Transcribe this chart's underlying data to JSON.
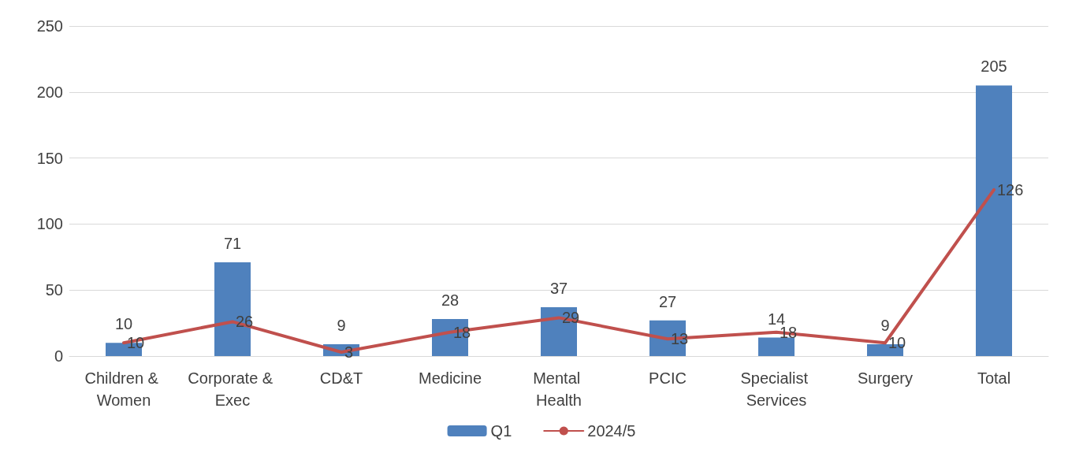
{
  "chart_data": {
    "type": "bar",
    "categories": [
      "Children & Women",
      "Corporate & Exec",
      "CD&T",
      "Medicine",
      "Mental Health",
      "PCIC",
      "Specialist Services",
      "Surgery",
      "Total"
    ],
    "series": [
      {
        "name": "Q1",
        "color": "#4f81bd",
        "values": [
          10,
          71,
          9,
          28,
          37,
          27,
          14,
          9,
          205
        ]
      },
      {
        "name": "2024/5",
        "type": "line",
        "color": "#c0504d",
        "values": [
          10,
          26,
          3,
          18,
          29,
          13,
          18,
          10,
          126
        ]
      }
    ],
    "ylim": [
      0,
      250
    ],
    "yticks": [
      0,
      50,
      100,
      150,
      200,
      250
    ],
    "grid": "y",
    "legend": "bottom",
    "data_labels": true,
    "marker": "none",
    "line_style": "solid"
  }
}
